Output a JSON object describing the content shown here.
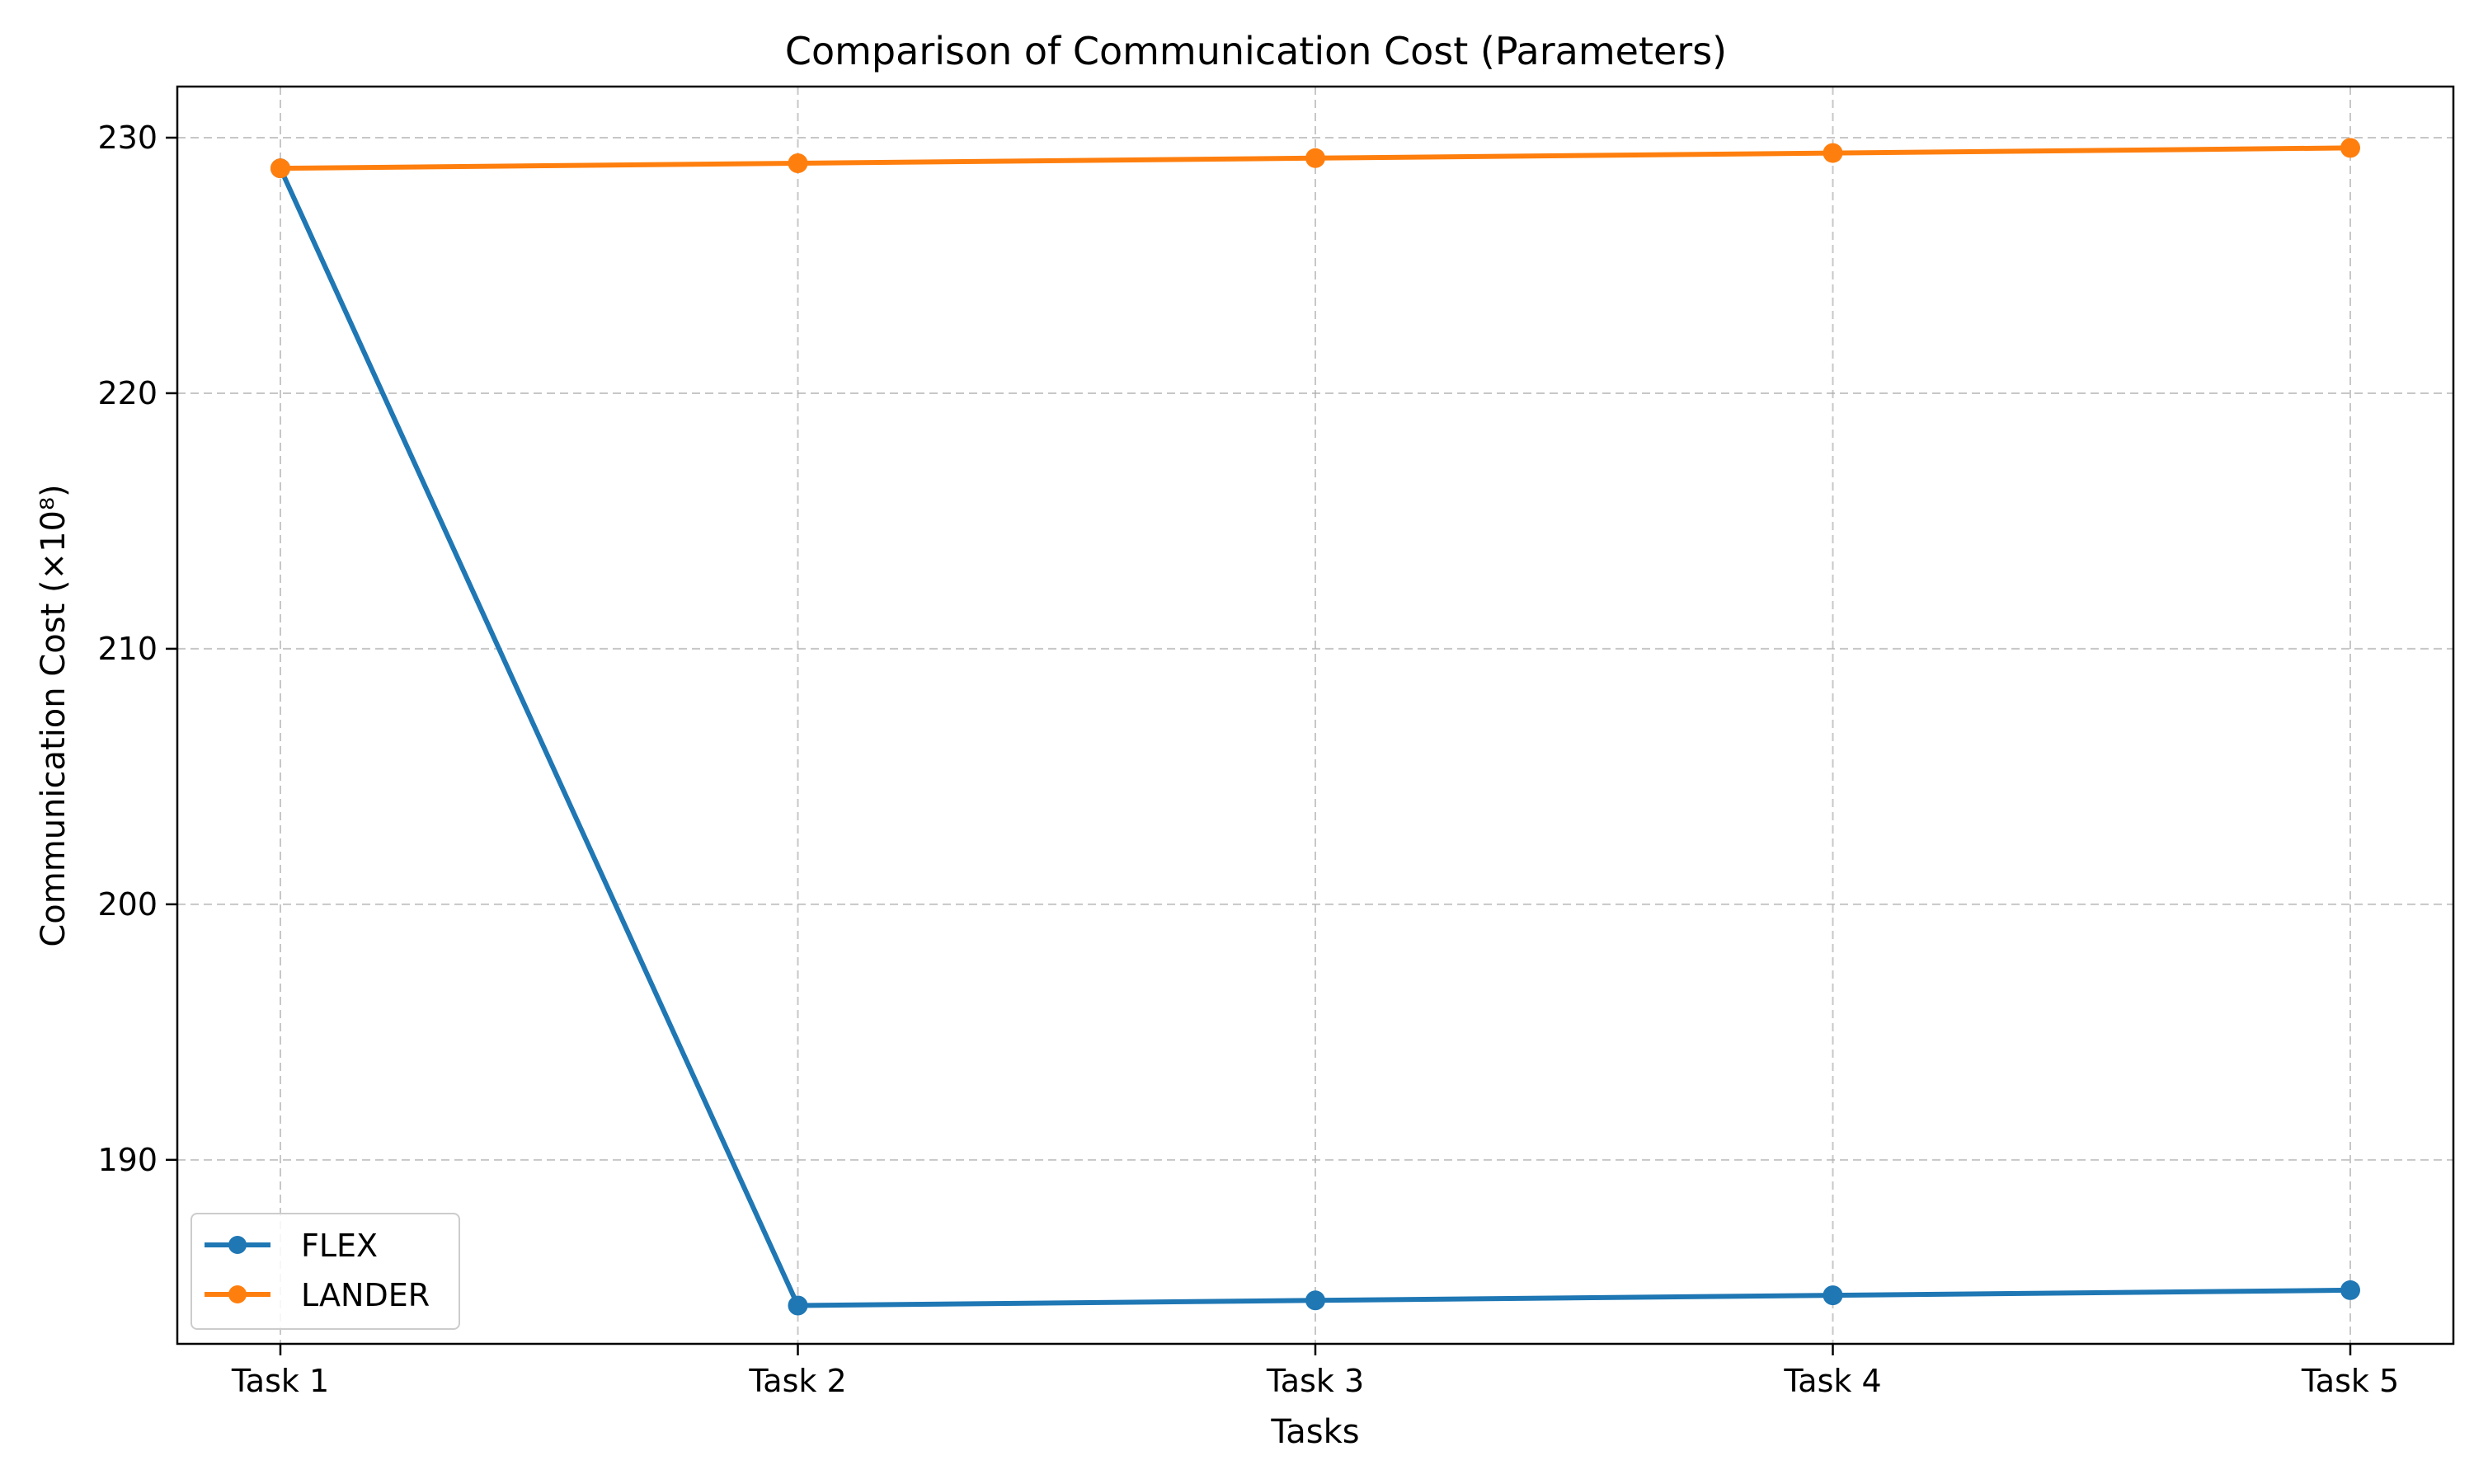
{
  "chart_data": {
    "type": "line",
    "title": "Comparison of Communication Cost (Parameters)",
    "xlabel": "Tasks",
    "ylabel": "Communication Cost (×10⁸)",
    "categories": [
      "Task 1",
      "Task 2",
      "Task 3",
      "Task 4",
      "Task 5"
    ],
    "series": [
      {
        "name": "FLEX",
        "color": "#1f77b4",
        "values": [
          228.8,
          184.3,
          184.5,
          184.7,
          184.9
        ]
      },
      {
        "name": "LANDER",
        "color": "#ff7f0e",
        "values": [
          228.8,
          229.0,
          229.2,
          229.4,
          229.6
        ]
      }
    ],
    "ylim": [
      182.8,
      232.0
    ],
    "yticks": [
      190,
      200,
      210,
      220,
      230
    ],
    "grid": true,
    "legend_position": "lower-left"
  }
}
